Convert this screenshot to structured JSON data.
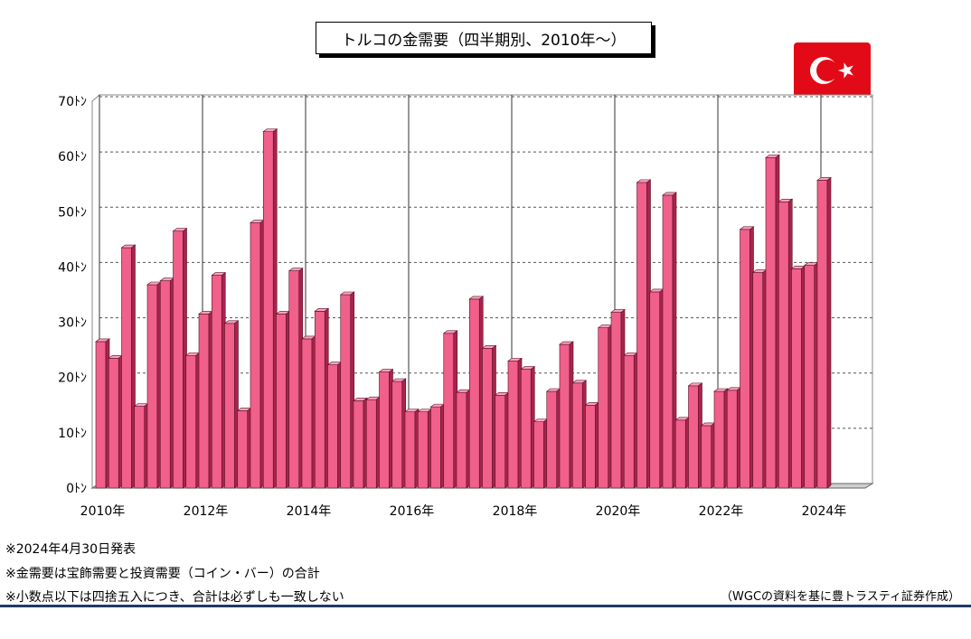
{
  "title": "トルコの金需要（四半期別、2010年～）",
  "flag_icon": "turkey-flag-icon",
  "notes": [
    "※2024年4月30日発表",
    "※金需要は宝飾需要と投資需要（コイン・バー）の合計",
    "※小数点以下は四捨五入につき、合計は必ずしも一致しない"
  ],
  "credit": "（WGCの資料を基に豊トラスティ証券作成）",
  "colors": {
    "bar_face": "#f0608a",
    "bar_top": "#f7a3bf",
    "bar_side": "#a8244c",
    "flag_red": "#e30a17",
    "footer_line": "#1f3a68"
  },
  "chart_data": {
    "type": "bar",
    "ylim": [
      0,
      70
    ],
    "grid": true,
    "y_ticks": [
      "0ﾄﾝ",
      "10ﾄﾝ",
      "20ﾄﾝ",
      "30ﾄﾝ",
      "40ﾄﾝ",
      "50ﾄﾝ",
      "60ﾄﾝ",
      "70ﾄﾝ"
    ],
    "x_ticks": [
      "2010年",
      "2012年",
      "2014年",
      "2016年",
      "2018年",
      "2020年",
      "2022年",
      "2024年"
    ],
    "categories": [
      "2010Q1",
      "2010Q2",
      "2010Q3",
      "2010Q4",
      "2011Q1",
      "2011Q2",
      "2011Q3",
      "2011Q4",
      "2012Q1",
      "2012Q2",
      "2012Q3",
      "2012Q4",
      "2013Q1",
      "2013Q2",
      "2013Q3",
      "2013Q4",
      "2014Q1",
      "2014Q2",
      "2014Q3",
      "2014Q4",
      "2015Q1",
      "2015Q2",
      "2015Q3",
      "2015Q4",
      "2016Q1",
      "2016Q2",
      "2016Q3",
      "2016Q4",
      "2017Q1",
      "2017Q2",
      "2017Q3",
      "2017Q4",
      "2018Q1",
      "2018Q2",
      "2018Q3",
      "2018Q4",
      "2019Q1",
      "2019Q2",
      "2019Q3",
      "2019Q4",
      "2020Q1",
      "2020Q2",
      "2020Q3",
      "2020Q4",
      "2021Q1",
      "2021Q2",
      "2021Q3",
      "2021Q4",
      "2022Q1",
      "2022Q2",
      "2022Q3",
      "2022Q4",
      "2023Q1",
      "2023Q2",
      "2023Q3",
      "2023Q4",
      "2024Q1"
    ],
    "values": [
      26.5,
      23.5,
      43.5,
      14.8,
      36.8,
      37.5,
      46.5,
      24.0,
      31.5,
      38.5,
      29.8,
      14.0,
      48.0,
      64.5,
      31.5,
      39.3,
      27.0,
      32.0,
      22.3,
      35.0,
      15.8,
      16.0,
      21.0,
      19.3,
      13.8,
      13.8,
      14.7,
      28.0,
      17.3,
      34.2,
      25.3,
      16.8,
      23.0,
      21.5,
      12.0,
      17.5,
      26.0,
      19.0,
      15.0,
      29.0,
      31.8,
      24.0,
      55.3,
      35.5,
      53.0,
      12.3,
      18.5,
      11.3,
      17.5,
      17.7,
      46.8,
      39.0,
      59.8,
      51.8,
      39.7,
      40.3,
      55.7
    ]
  }
}
